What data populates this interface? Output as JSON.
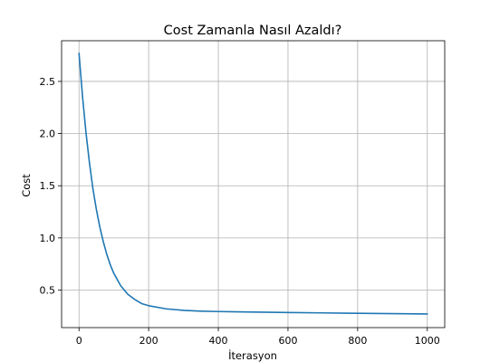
{
  "chart_data": {
    "type": "line",
    "title": "Cost Zamanla Nasıl Azaldı?",
    "xlabel": "İterasyon",
    "ylabel": "Cost",
    "xlim": [
      -50,
      1050
    ],
    "ylim": [
      0.14,
      2.89
    ],
    "xticks": [
      0,
      200,
      400,
      600,
      800,
      1000
    ],
    "yticks": [
      0.5,
      1.0,
      1.5,
      2.0,
      2.5
    ],
    "xtick_labels": [
      "0",
      "200",
      "400",
      "600",
      "800",
      "1000"
    ],
    "ytick_labels": [
      "0.5",
      "1.0",
      "1.5",
      "2.0",
      "2.5"
    ],
    "grid": true,
    "legend": "none",
    "series": [
      {
        "color": "#1f77b4",
        "x": [
          0,
          10,
          20,
          30,
          40,
          50,
          60,
          70,
          80,
          90,
          100,
          120,
          140,
          160,
          180,
          200,
          250,
          300,
          350,
          400,
          500,
          600,
          700,
          800,
          900,
          1000
        ],
        "y": [
          2.77,
          2.36,
          2.01,
          1.72,
          1.47,
          1.27,
          1.1,
          0.96,
          0.84,
          0.74,
          0.66,
          0.54,
          0.46,
          0.41,
          0.37,
          0.35,
          0.32,
          0.305,
          0.298,
          0.294,
          0.289,
          0.285,
          0.281,
          0.277,
          0.274,
          0.271
        ]
      }
    ]
  }
}
